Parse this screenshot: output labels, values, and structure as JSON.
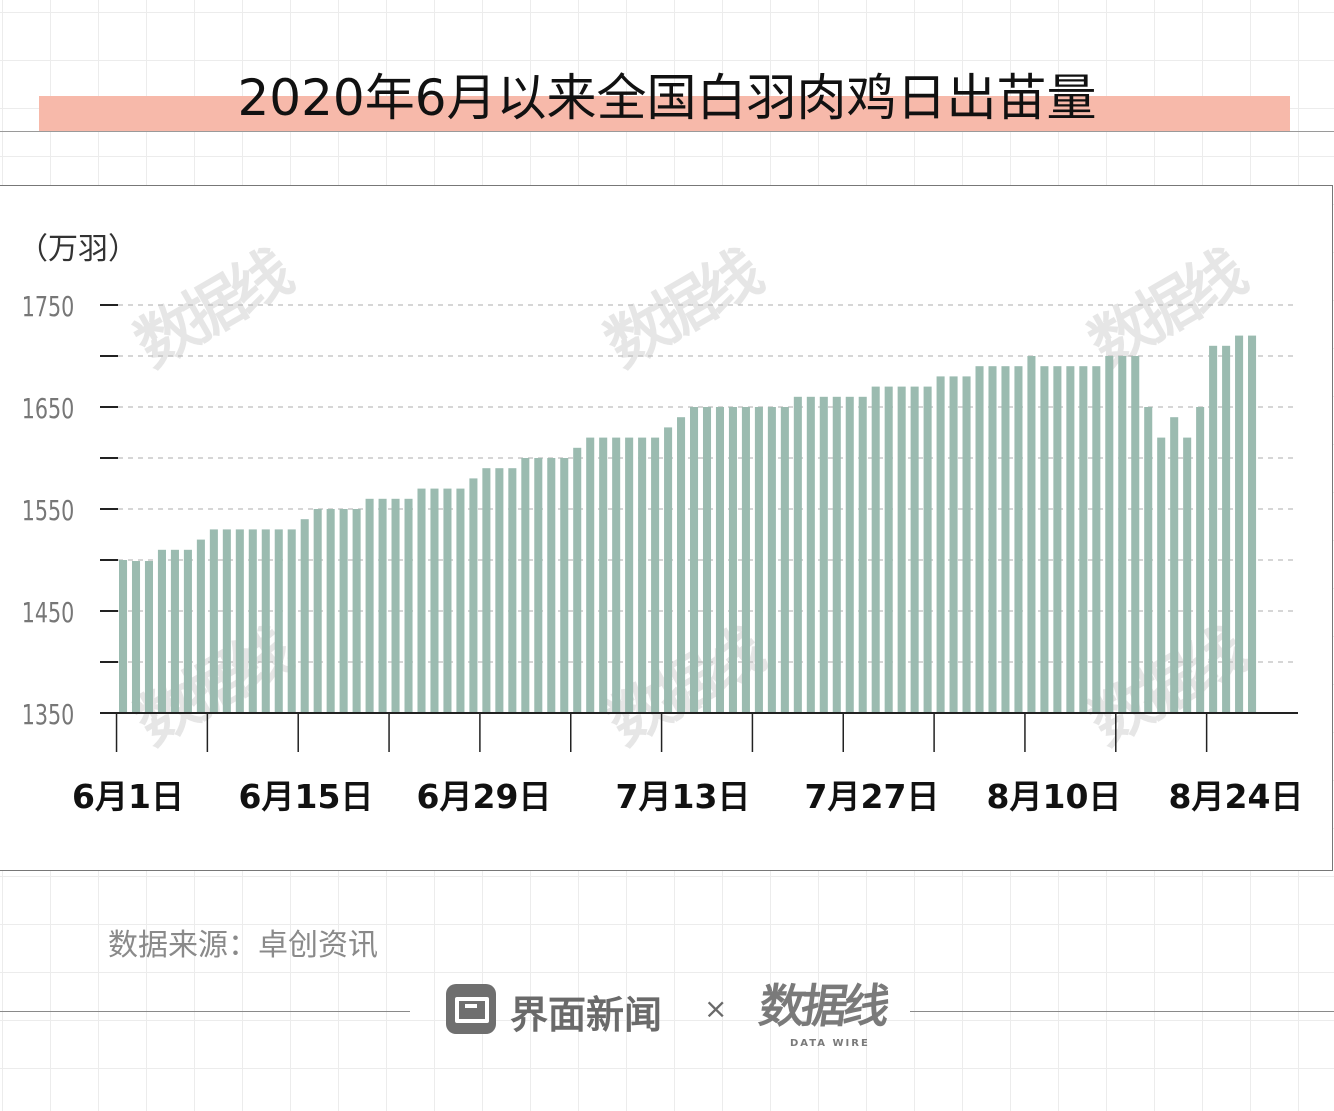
{
  "title": "2020年6月以来全国白羽肉鸡日出苗量",
  "colors": {
    "bar": "#9bbbb0",
    "title_band": "#f7b9aa",
    "gridline": "#bdbdbd"
  },
  "source_text": "数据来源：卓创资讯",
  "footer": {
    "brand_name": "界面新闻",
    "times": "×",
    "datawire_logo": "数据线",
    "datawire_sub": "DATA WIRE"
  },
  "watermark": {
    "text": "数据线",
    "sub": "DATA WIRE"
  },
  "chart_data": {
    "type": "bar",
    "ylabel": "（万羽）",
    "xlabel": "",
    "ylim": [
      1350,
      1770
    ],
    "yticks": [
      1350,
      1450,
      1550,
      1650,
      1750
    ],
    "ytick_labels": [
      "1350",
      "1450",
      "1550",
      "1650",
      "1750"
    ],
    "minor_yticks": [
      1400,
      1500,
      1600,
      1700
    ],
    "grid": "horizontal dashed",
    "xtick_labels": [
      "6月1日",
      "6月15日",
      "6月29日",
      "7月13日",
      "7月27日",
      "8月10日",
      "8月24日"
    ],
    "x_start": "2020-06-01",
    "x_end": "2020-08-28",
    "values": [
      1500,
      1499,
      1499,
      1510,
      1510,
      1510,
      1520,
      1530,
      1530,
      1530,
      1530,
      1530,
      1530,
      1530,
      1540,
      1550,
      1550,
      1550,
      1550,
      1560,
      1560,
      1560,
      1560,
      1570,
      1570,
      1570,
      1570,
      1580,
      1590,
      1590,
      1590,
      1600,
      1600,
      1600,
      1600,
      1610,
      1620,
      1620,
      1620,
      1620,
      1620,
      1620,
      1630,
      1640,
      1650,
      1650,
      1650,
      1650,
      1650,
      1650,
      1650,
      1650,
      1660,
      1660,
      1660,
      1660,
      1660,
      1660,
      1670,
      1670,
      1670,
      1670,
      1670,
      1680,
      1680,
      1680,
      1690,
      1690,
      1690,
      1690,
      1700,
      1690,
      1690,
      1690,
      1690,
      1690,
      1700,
      1700,
      1700,
      1650,
      1620,
      1640,
      1620,
      1650,
      1710,
      1710,
      1720,
      1720
    ]
  }
}
